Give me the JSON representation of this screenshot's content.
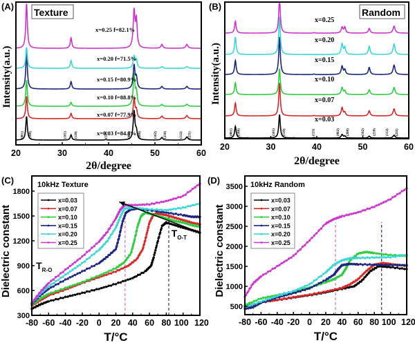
{
  "figure": {
    "panel_labels": [
      "(A)",
      "(B)",
      "(C)",
      "(D)"
    ]
  },
  "chart_data": [
    {
      "panel": "A",
      "type": "line",
      "title": "Texture",
      "xlabel": "2θ/degree",
      "ylabel": "Intensity(a.u.)",
      "xlim": [
        20,
        60
      ],
      "xticks": [
        20,
        30,
        40,
        50,
        60
      ],
      "grid": false,
      "peaks_2theta": [
        22.3,
        31.9,
        39.4,
        45.5,
        46.0,
        51.5,
        56.9
      ],
      "hkl_labels": [
        {
          "label": "(001)",
          "x": 21.6
        },
        {
          "label": "(100)",
          "x": 23.3
        },
        {
          "label": "(101)",
          "x": 30.8
        },
        {
          "label": "(110)",
          "x": 33.1
        },
        {
          "label": "(111)",
          "x": 39.6
        },
        {
          "label": "(002)",
          "x": 44.6
        },
        {
          "label": "(200)",
          "x": 46.9
        },
        {
          "label": "(102)",
          "x": 50.3
        },
        {
          "label": "(210)",
          "x": 52.4
        },
        {
          "label": "(112)",
          "x": 55.8
        },
        {
          "label": "(211)",
          "x": 57.7
        }
      ],
      "series": [
        {
          "name": "x=0.03",
          "annotation": "x=0.03 f=84.8%",
          "color": "#000000",
          "peak_heights": [
            0.9,
            0.2,
            0.02,
            1.1,
            0.3,
            0.1,
            0.12
          ]
        },
        {
          "name": "x=0.07",
          "annotation": "x=0.07 f=77.9%",
          "color": "#d62728",
          "peak_heights": [
            0.85,
            0.2,
            0.0,
            0.75,
            0.3,
            0.1,
            0.12
          ]
        },
        {
          "name": "x=0.10",
          "annotation": "x=0.10 f=88.8%",
          "color": "#2ecc40",
          "peak_heights": [
            1.0,
            0.15,
            0.0,
            1.2,
            0.5,
            0.07,
            0.08
          ]
        },
        {
          "name": "x=0.15",
          "annotation": "x=0.15 f=80.9%",
          "color": "#1a237e",
          "peak_heights": [
            1.4,
            0.28,
            0.0,
            0.9,
            0.4,
            0.1,
            0.1
          ]
        },
        {
          "name": "x=0.20",
          "annotation": "x=0.20 f=71.5%",
          "color": "#3ad6d6",
          "peak_heights": [
            0.8,
            0.3,
            0.0,
            0.45,
            0.3,
            0.07,
            0.07
          ]
        },
        {
          "name": "x=0.25",
          "annotation": "x=0.25 f=82.1%",
          "color": "#cc33cc",
          "peak_heights": [
            1.7,
            0.4,
            0.0,
            1.4,
            1.0,
            0.15,
            0.15
          ]
        }
      ]
    },
    {
      "panel": "B",
      "type": "line",
      "title": "Random",
      "xlabel": "2θ/degree",
      "ylabel": "Intensity(a.u.)",
      "xlim": [
        20,
        60
      ],
      "xticks": [
        20,
        30,
        40,
        50,
        60
      ],
      "grid": false,
      "peaks_2theta": [
        22.3,
        31.9,
        39.4,
        45.5,
        46.1,
        51.4,
        56.8
      ],
      "hkl_labels": [
        {
          "label": "(001)",
          "x": 21.6
        },
        {
          "label": "(100)",
          "x": 23.2
        },
        {
          "label": "(101)",
          "x": 30.8
        },
        {
          "label": "(110)",
          "x": 33.1
        },
        {
          "label": "(111)",
          "x": 39.5
        },
        {
          "label": "(002)",
          "x": 44.8
        },
        {
          "label": "(200)",
          "x": 46.9
        },
        {
          "label": "(102)",
          "x": 50.2
        },
        {
          "label": "(210)",
          "x": 52.7
        },
        {
          "label": "(112)",
          "x": 55.5
        },
        {
          "label": "(211)",
          "x": 57.6
        }
      ],
      "series": [
        {
          "name": "x=0.03",
          "annotation": "x=0.03",
          "color": "#000000",
          "peak_heights": [
            0.5,
            1.0,
            0.02,
            0.15,
            0.08,
            0.08,
            0.12
          ]
        },
        {
          "name": "x=0.07",
          "annotation": "x=0.07",
          "color": "#d62728",
          "peak_heights": [
            0.55,
            1.4,
            0.02,
            0.35,
            0.15,
            0.22,
            0.3
          ]
        },
        {
          "name": "x=0.10",
          "annotation": "x=0.10",
          "color": "#2ecc40",
          "peak_heights": [
            0.5,
            1.1,
            0.0,
            0.3,
            0.15,
            0.2,
            0.3
          ]
        },
        {
          "name": "x=0.15",
          "annotation": "x=0.15",
          "color": "#1a237e",
          "peak_heights": [
            0.6,
            1.6,
            0.02,
            0.35,
            0.2,
            0.3,
            0.4
          ]
        },
        {
          "name": "x=0.20",
          "annotation": "x=0.20",
          "color": "#3ad6d6",
          "peak_heights": [
            0.75,
            1.6,
            0.0,
            0.45,
            0.3,
            0.35,
            0.45
          ]
        },
        {
          "name": "x=0.25",
          "annotation": "x=0.25",
          "color": "#cc33cc",
          "peak_heights": [
            0.5,
            1.5,
            0.02,
            0.25,
            0.25,
            0.2,
            0.3
          ]
        }
      ]
    },
    {
      "panel": "C",
      "type": "line",
      "title": "10kHz  Texture",
      "xlabel": "T/°C",
      "ylabel": "Dielectric constant",
      "xlim": [
        -80,
        120
      ],
      "ylim": [
        300,
        1900
      ],
      "xticks": [
        -80,
        -60,
        -40,
        -20,
        0,
        20,
        40,
        60,
        80,
        100,
        120
      ],
      "yticks": [
        300,
        600,
        900,
        1200,
        1500,
        1800
      ],
      "grid": false,
      "legend": "top-left",
      "annotations": [
        {
          "text": "T",
          "sub": "R-O",
          "x": -75,
          "y": 860
        },
        {
          "text": "T",
          "sub": "O-T",
          "x": 86,
          "y": 1250
        }
      ],
      "arrow": {
        "from": [
          120,
          1300
        ],
        "to": [
          24,
          1670
        ]
      },
      "vlines": [
        {
          "x": 31,
          "color": "#cc77aa"
        },
        {
          "x": 83,
          "color": "#333366"
        }
      ],
      "series": [
        {
          "name": "x=0.03",
          "color": "#000000",
          "x": [
            -80,
            -70,
            -60,
            -40,
            -20,
            0,
            20,
            40,
            55,
            62,
            65,
            70,
            75,
            80,
            90,
            100,
            110,
            120
          ],
          "y": [
            380,
            430,
            470,
            520,
            570,
            620,
            680,
            750,
            830,
            900,
            1000,
            1200,
            1380,
            1420,
            1390,
            1360,
            1330,
            1300
          ]
        },
        {
          "name": "x=0.07",
          "color": "#d62728",
          "x": [
            -80,
            -70,
            -60,
            -40,
            -20,
            0,
            20,
            35,
            45,
            52,
            56,
            60,
            65,
            70,
            80,
            90,
            100,
            110,
            120
          ],
          "y": [
            420,
            480,
            540,
            610,
            690,
            760,
            830,
            900,
            980,
            1100,
            1250,
            1420,
            1520,
            1530,
            1510,
            1480,
            1450,
            1420,
            1400
          ]
        },
        {
          "name": "x=0.10",
          "color": "#2ecc40",
          "x": [
            -80,
            -70,
            -60,
            -40,
            -20,
            0,
            20,
            30,
            38,
            42,
            46,
            50,
            55,
            60,
            70,
            80,
            90,
            100,
            110,
            120
          ],
          "y": [
            430,
            500,
            560,
            630,
            700,
            780,
            870,
            940,
            1050,
            1200,
            1380,
            1500,
            1540,
            1530,
            1500,
            1470,
            1440,
            1420,
            1390,
            1370
          ]
        },
        {
          "name": "x=0.15",
          "color": "#1a237e",
          "x": [
            -80,
            -70,
            -60,
            -40,
            -20,
            0,
            10,
            20,
            24,
            28,
            32,
            38,
            45,
            60,
            80,
            100,
            110,
            120
          ],
          "y": [
            440,
            540,
            620,
            730,
            830,
            930,
            1010,
            1100,
            1250,
            1430,
            1540,
            1580,
            1590,
            1570,
            1540,
            1510,
            1490,
            1490
          ]
        },
        {
          "name": "x=0.20",
          "color": "#3ad6d6",
          "x": [
            -80,
            -70,
            -60,
            -40,
            -20,
            0,
            10,
            20,
            25,
            30,
            40,
            60,
            80,
            100,
            120
          ],
          "y": [
            450,
            560,
            650,
            790,
            930,
            1090,
            1200,
            1360,
            1480,
            1590,
            1600,
            1580,
            1570,
            1600,
            1650
          ]
        },
        {
          "name": "x=0.25",
          "color": "#cc33cc",
          "x": [
            -80,
            -70,
            -60,
            -40,
            -20,
            0,
            10,
            20,
            25,
            30,
            40,
            60,
            80,
            100,
            120
          ],
          "y": [
            450,
            580,
            690,
            850,
            1010,
            1190,
            1310,
            1470,
            1570,
            1630,
            1630,
            1640,
            1680,
            1740,
            1890
          ]
        }
      ]
    },
    {
      "panel": "D",
      "type": "line",
      "title": "10kHz  Random",
      "xlabel": "T/°C",
      "ylabel": "Dielectric constant",
      "xlim": [
        -80,
        120
      ],
      "ylim": [
        300,
        3700
      ],
      "xticks": [
        -80,
        -60,
        -40,
        -20,
        0,
        20,
        40,
        60,
        80,
        100,
        120
      ],
      "yticks": [
        500,
        1000,
        1500,
        2000,
        2500,
        3000,
        3500
      ],
      "grid": false,
      "legend": "top-left",
      "vlines": [
        {
          "x": 32,
          "color": "#cc77aa"
        },
        {
          "x": 89,
          "color": "#333366"
        }
      ],
      "series": [
        {
          "name": "x=0.03",
          "color": "#000000",
          "x": [
            -80,
            -60,
            -40,
            -20,
            0,
            20,
            40,
            55,
            65,
            75,
            85,
            100,
            120
          ],
          "y": [
            500,
            600,
            660,
            720,
            780,
            850,
            940,
            1000,
            1150,
            1380,
            1500,
            1480,
            1430
          ]
        },
        {
          "name": "x=0.07",
          "color": "#d62728",
          "x": [
            -80,
            -60,
            -40,
            -20,
            0,
            20,
            40,
            50,
            60,
            70,
            80,
            90,
            100,
            120
          ],
          "y": [
            480,
            600,
            660,
            730,
            790,
            870,
            960,
            1050,
            1180,
            1380,
            1540,
            1580,
            1560,
            1510
          ]
        },
        {
          "name": "x=0.10",
          "color": "#2ecc40",
          "x": [
            -80,
            -60,
            -40,
            -20,
            0,
            20,
            30,
            40,
            45,
            50,
            60,
            70,
            80,
            100,
            120
          ],
          "y": [
            530,
            700,
            780,
            870,
            970,
            1100,
            1180,
            1290,
            1450,
            1650,
            1820,
            1860,
            1830,
            1780,
            1760
          ]
        },
        {
          "name": "x=0.15",
          "color": "#1a237e",
          "x": [
            -80,
            -70,
            -60,
            -40,
            -20,
            0,
            20,
            30,
            35,
            40,
            50,
            60,
            80,
            100,
            120
          ],
          "y": [
            440,
            480,
            590,
            720,
            830,
            950,
            1160,
            1290,
            1420,
            1530,
            1560,
            1550,
            1540,
            1530,
            1530
          ]
        },
        {
          "name": "x=0.20",
          "color": "#3ad6d6",
          "x": [
            -80,
            -60,
            -40,
            -20,
            0,
            20,
            30,
            40,
            50,
            60,
            80,
            100,
            120
          ],
          "y": [
            480,
            620,
            760,
            880,
            1050,
            1350,
            1540,
            1650,
            1700,
            1710,
            1720,
            1730,
            1790
          ]
        },
        {
          "name": "x=0.25",
          "color": "#cc33cc",
          "x": [
            -80,
            -70,
            -60,
            -40,
            -20,
            0,
            20,
            30,
            40,
            60,
            80,
            100,
            120
          ],
          "y": [
            740,
            1070,
            1250,
            1500,
            1760,
            2150,
            2570,
            2680,
            2750,
            2850,
            2990,
            3180,
            3450
          ]
        }
      ]
    }
  ]
}
